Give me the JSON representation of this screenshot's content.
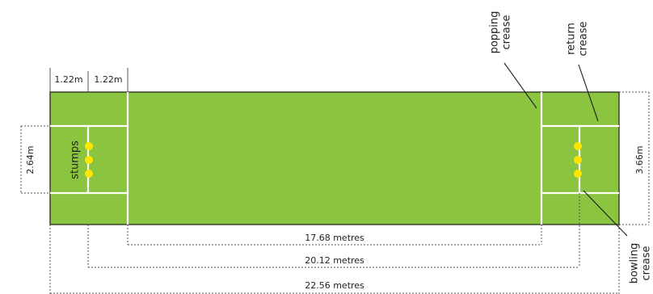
{
  "dimensions": {
    "crease_gap_left": "1.22m",
    "crease_gap_right": "1.22m",
    "return_crease_width": "2.64m",
    "pitch_width": "3.66m",
    "popping_to_popping": "17.68 metres",
    "stumps_to_stumps": "20.12 metres",
    "bowling_to_bowling": "22.56 metres"
  },
  "labels": {
    "stumps": "stumps",
    "popping_crease_1": "popping",
    "popping_crease_2": "crease",
    "return_crease_1": "return",
    "return_crease_2": "crease",
    "bowling_crease_1": "bowling",
    "bowling_crease_2": "crease"
  },
  "colors": {
    "pitch": "#8bc53f",
    "pitch_border": "#1a1a1a",
    "crease_lines": "#ffffff",
    "stump_dots": "#ffe600",
    "dimension_lines": "#555555"
  },
  "icons": {
    "stumps": "stump-dot-icon"
  }
}
